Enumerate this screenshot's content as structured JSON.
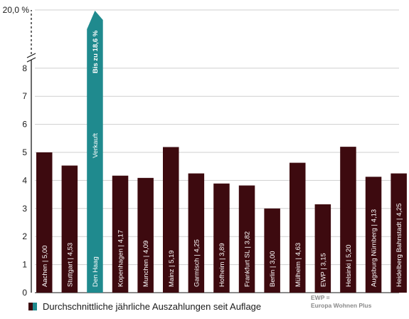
{
  "colors": {
    "bar": "#3d0a0f",
    "highlight": "#1f8a8e",
    "axis": "#1a1a1a",
    "grid": "#cfcfcf"
  },
  "legend": {
    "label": "Durchschnittliche jährliche Auszahlungen seit Auflage"
  },
  "note": {
    "line1": "EWP =",
    "line2": "Europa Wohnen Plus"
  },
  "chart_data": {
    "type": "bar",
    "categories": [
      "Aachen",
      "Stuttgart",
      "Den Haag",
      "Kopenhagen",
      "Munchen",
      "Mainz",
      "Garmisch",
      "Hofheim",
      "Frankfurt SL",
      "Berlin",
      "Mülheim",
      "EWP",
      "Helsinki",
      "Augsburg Nürnberg",
      "Heidelberg Bahnstadt"
    ],
    "values": [
      5.0,
      4.53,
      18.6,
      4.17,
      4.09,
      5.19,
      4.25,
      3.89,
      3.82,
      3.0,
      4.63,
      3.15,
      5.2,
      4.13,
      4.25
    ],
    "bar_labels": [
      "Aachen | 5,00",
      "Stuttgart | 4,53",
      "Den Haag",
      "Kopenhagen | 4,17",
      "Munchen | 4,09",
      "Mainz | 5,19",
      "Garmisch | 4,25",
      "Hofheim | 3,89",
      "Frankfurt SL | 3,82",
      "Berlin | 3,00",
      "Mülheim | 4,63",
      "EWP | 3,15",
      "Helsinki | 5,20",
      "Augsburg Nürnberg | 4,13",
      "Heidelberg Bahnstadt | 4,25"
    ],
    "highlight_index": 2,
    "highlight_texts": [
      "Verkauft",
      "Bis zu 18,6 %"
    ],
    "y_ticks": [
      "0",
      "1",
      "2",
      "3",
      "4",
      "5",
      "6",
      "7",
      "8"
    ],
    "y_break_label": "20,0 %",
    "ylim": [
      0,
      8
    ],
    "axis_break": [
      8,
      20
    ],
    "grid": true
  }
}
